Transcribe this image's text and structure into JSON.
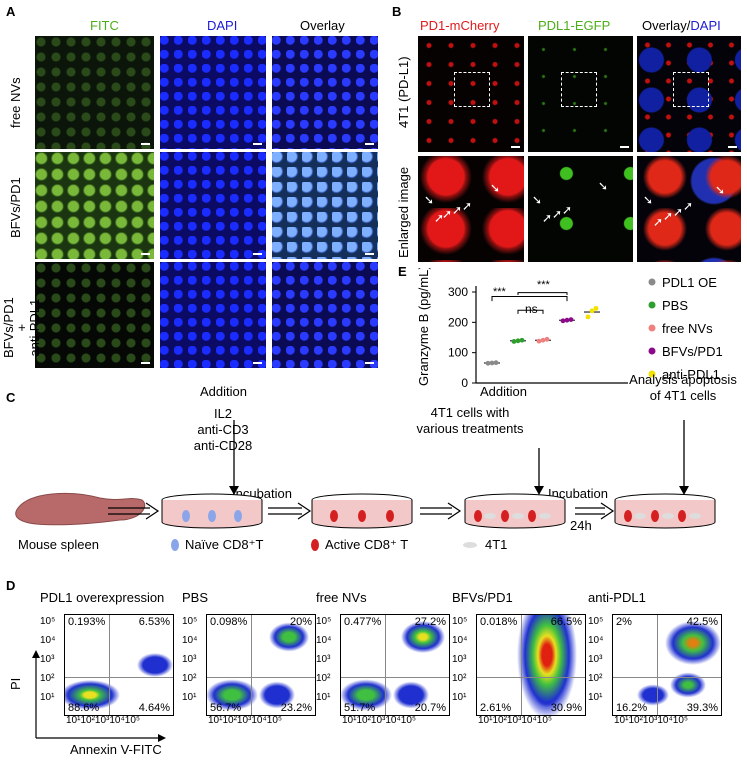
{
  "panelA": {
    "label": "A",
    "columns": [
      "FITC",
      "DAPI",
      "Overlay"
    ],
    "rows": [
      "free NVs",
      "BFVs/PD1",
      "BFVs/PD1\n+\nanti-PDL1"
    ],
    "column_colors": {
      "FITC": "#4caf1a",
      "DAPI": "#1b1bd6",
      "Overlay": "#000000"
    }
  },
  "panelB": {
    "label": "B",
    "col1": "PD1-mCherry",
    "col2": "PDL1-EGFP",
    "col3a": "Overlay/",
    "col3b": "DAPI",
    "row1": "4T1 (PD-L1)",
    "row2": "Enlarged image",
    "colors": {
      "red": "#e01b1b",
      "green": "#4caf1a",
      "blue": "#1b1bd6"
    }
  },
  "panelE": {
    "label": "E",
    "ylabel": "Granzyme B (pg/mL)",
    "yticks": [
      "0",
      "100",
      "200",
      "300"
    ],
    "sig1": "***",
    "sig2": "***",
    "ns": "ns"
  },
  "chart_data": {
    "type": "scatter",
    "ylabel": "Granzyme B (pg/mL)",
    "ylim": [
      0,
      300
    ],
    "categories": [
      "PDL1 OE",
      "PBS",
      "free NVs",
      "BFVs/PD1",
      "anti-PDL1"
    ],
    "series": [
      {
        "name": "PDL1 OE",
        "color": "#8a8a8a",
        "values": [
          65,
          66,
          67
        ]
      },
      {
        "name": "PBS",
        "color": "#2e9e2e",
        "values": [
          137,
          139,
          141
        ]
      },
      {
        "name": "free NVs",
        "color": "#f08080",
        "values": [
          138,
          141,
          144
        ]
      },
      {
        "name": "BFVs/PD1",
        "color": "#8a0a8a",
        "values": [
          205,
          207,
          209
        ]
      },
      {
        "name": "anti-PDL1",
        "color": "#f2e200",
        "values": [
          218,
          238,
          246
        ]
      }
    ],
    "grid": false,
    "legend": "right"
  },
  "panelC": {
    "label": "C",
    "addition1": "Addition",
    "reagents": [
      "IL2",
      "anti-CD3",
      "anti-CD28"
    ],
    "incubation1": "Incubation",
    "addition2": "Addition",
    "treat": [
      "4T1 cells with",
      "various treatments"
    ],
    "incubation2": "Incubation",
    "time": "24h",
    "analysis": [
      "Analysis apoptosis",
      "of 4T1 cells"
    ],
    "mouse": "Mouse spleen",
    "naive": "Naïve CD8⁺T",
    "active": "Active CD8⁺ T",
    "cell4t1": "4T1"
  },
  "panelD": {
    "label": "D",
    "ylabel": "PI",
    "xlabel": "Annexin V-FITC",
    "yticks": [
      "10⁵",
      "10⁴",
      "10³",
      "10²",
      "10¹"
    ],
    "xticks": "10¹10²10³10⁴10⁵",
    "plots": [
      {
        "title": "PDL1 overexpression",
        "ul": "0.193%",
        "ur": "6.53%",
        "ll": "88.6%",
        "lr": "4.64%"
      },
      {
        "title": "PBS",
        "ul": "0.098%",
        "ur": "20%",
        "ll": "56.7%",
        "lr": "23.2%"
      },
      {
        "title": "free NVs",
        "ul": "0.477%",
        "ur": "27.2%",
        "ll": "51.7%",
        "lr": "20.7%"
      },
      {
        "title": "BFVs/PD1",
        "ul": "0.018%",
        "ur": "66.5%",
        "ll": "2.61%",
        "lr": "30.9%"
      },
      {
        "title": "anti-PDL1",
        "ul": "2%",
        "ur": "42.5%",
        "ll": "16.2%",
        "lr": "39.3%"
      }
    ]
  }
}
